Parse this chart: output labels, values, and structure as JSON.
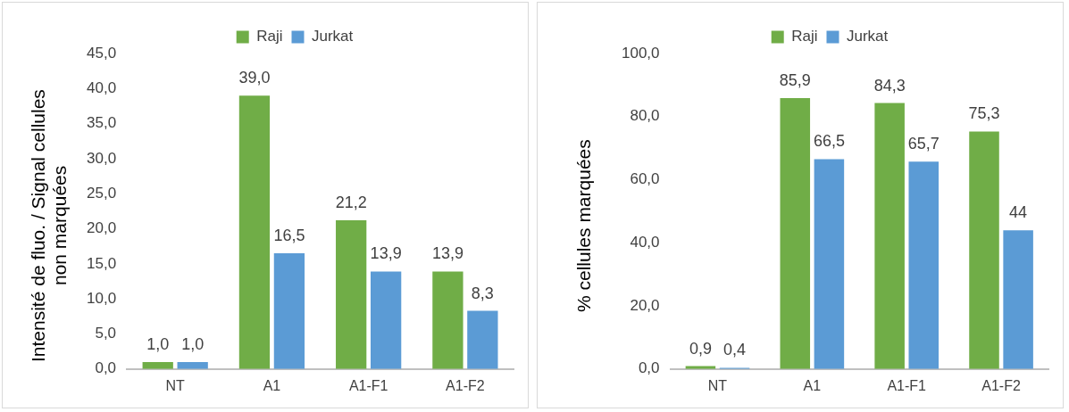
{
  "chart_data": [
    {
      "type": "bar",
      "ylabel": "Intensité de fluo. / Signal cellules non marquées",
      "categories": [
        "NT",
        "A1",
        "A1-F1",
        "A1-F2"
      ],
      "series": [
        {
          "name": "Raji",
          "color": "#70ad47",
          "values": [
            1.0,
            39.0,
            21.2,
            13.9
          ],
          "value_labels": [
            "1,0",
            "39,0",
            "21,2",
            "13,9"
          ]
        },
        {
          "name": "Jurkat",
          "color": "#5b9bd5",
          "values": [
            1.0,
            16.5,
            13.9,
            8.3
          ],
          "value_labels": [
            "1,0",
            "16,5",
            "13,9",
            "8,3"
          ]
        }
      ],
      "ylim": [
        0,
        45
      ],
      "yticks": [
        {
          "value": 0,
          "label": "0,0"
        },
        {
          "value": 5,
          "label": "5,0"
        },
        {
          "value": 10,
          "label": "10,0"
        },
        {
          "value": 15,
          "label": "15,0"
        },
        {
          "value": 20,
          "label": "20,0"
        },
        {
          "value": 25,
          "label": "25,0"
        },
        {
          "value": 30,
          "label": "30,0"
        },
        {
          "value": 35,
          "label": "35,0"
        },
        {
          "value": 40,
          "label": "40,0"
        },
        {
          "value": 45,
          "label": "45,0"
        }
      ],
      "grid": false,
      "legend": "top"
    },
    {
      "type": "bar",
      "ylabel": "% cellules marquées",
      "categories": [
        "NT",
        "A1",
        "A1-F1",
        "A1-F2"
      ],
      "series": [
        {
          "name": "Raji",
          "color": "#70ad47",
          "values": [
            0.9,
            85.9,
            84.3,
            75.3
          ],
          "value_labels": [
            "0,9",
            "85,9",
            "84,3",
            "75,3"
          ]
        },
        {
          "name": "Jurkat",
          "color": "#5b9bd5",
          "values": [
            0.4,
            66.5,
            65.7,
            44
          ],
          "value_labels": [
            "0,4",
            "66,5",
            "65,7",
            "44"
          ]
        }
      ],
      "ylim": [
        0,
        100
      ],
      "yticks": [
        {
          "value": 0,
          "label": "0,0"
        },
        {
          "value": 20,
          "label": "20,0"
        },
        {
          "value": 40,
          "label": "40,0"
        },
        {
          "value": 60,
          "label": "60,0"
        },
        {
          "value": 80,
          "label": "80,0"
        },
        {
          "value": 100,
          "label": "100,0"
        }
      ],
      "grid": false,
      "legend": "top"
    }
  ]
}
